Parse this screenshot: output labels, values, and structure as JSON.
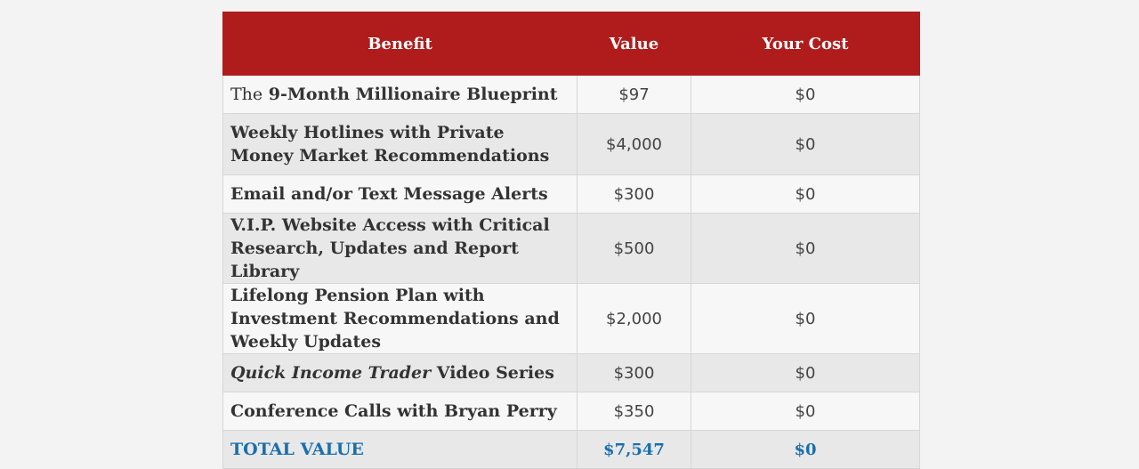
{
  "table": {
    "headers": {
      "benefit": "Benefit",
      "value": "Value",
      "cost": "Your Cost"
    },
    "rows": [
      {
        "prefix": "The",
        "title": "9-Month Millionaire Blueprint",
        "value": "$97",
        "cost": "$0"
      },
      {
        "title": "Weekly Hotlines with Private Money Market Recommendations",
        "value": "$4,000",
        "cost": "$0"
      },
      {
        "title": "Email and/or Text Message Alerts",
        "value": "$300",
        "cost": "$0"
      },
      {
        "title": "V.I.P. Website Access with Critical Research, Updates and Report Library",
        "value": "$500",
        "cost": "$0"
      },
      {
        "title": "Lifelong Pension Plan with Investment Recommendations and Weekly Updates",
        "value": "$2,000",
        "cost": "$0"
      },
      {
        "title_italic": "Quick Income Trader",
        "title": "Video Series",
        "value": "$300",
        "cost": "$0"
      },
      {
        "title": "Conference Calls with Bryan Perry",
        "value": "$350",
        "cost": "$0"
      }
    ],
    "total": {
      "label": "TOTAL VALUE",
      "value": "$7,547",
      "cost": "$0"
    }
  },
  "colors": {
    "header_bg": "#b01c1c",
    "total_text": "#1a6fae",
    "row_odd": "#f7f7f7",
    "row_even": "#e8e8e8"
  }
}
